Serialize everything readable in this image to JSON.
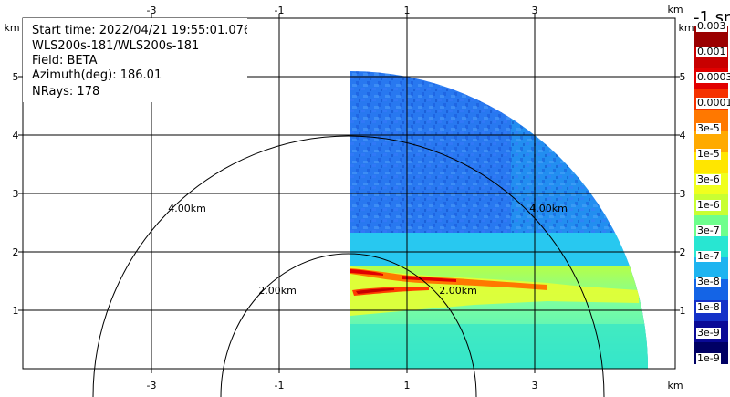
{
  "info": {
    "start_time": "Start time: 2022/04/21 19:55:01.076",
    "instrument": "WLS200s-181/WLS200s-181",
    "field": "Field: BETA",
    "azimuth": "Azimuth(deg): 186.01",
    "nrays": "NRays: 178"
  },
  "axes": {
    "unit": "km",
    "x_ticks": [
      "-3",
      "-1",
      "1",
      "3"
    ],
    "y_ticks": [
      "1",
      "2",
      "3",
      "4",
      "5"
    ],
    "range_rings": [
      "2.00km",
      "4.00km"
    ]
  },
  "colorbar": {
    "title": "-1 sr",
    "labels": [
      "0.003",
      "0.001",
      "0.0003",
      "0.0001",
      "3e-5",
      "1e-5",
      "3e-6",
      "1e-6",
      "3e-7",
      "1e-7",
      "3e-8",
      "1e-8",
      "3e-9",
      "1e-9"
    ],
    "colors": [
      "#9b0000",
      "#c80000",
      "#e10000",
      "#f53200",
      "#ff7800",
      "#ffaa00",
      "#ffe600",
      "#f0ff1e",
      "#c8ff32",
      "#6eff8c",
      "#28e6d2",
      "#1eb4f0",
      "#1464e6",
      "#1432c8",
      "#0a0a96",
      "#000064"
    ]
  }
}
